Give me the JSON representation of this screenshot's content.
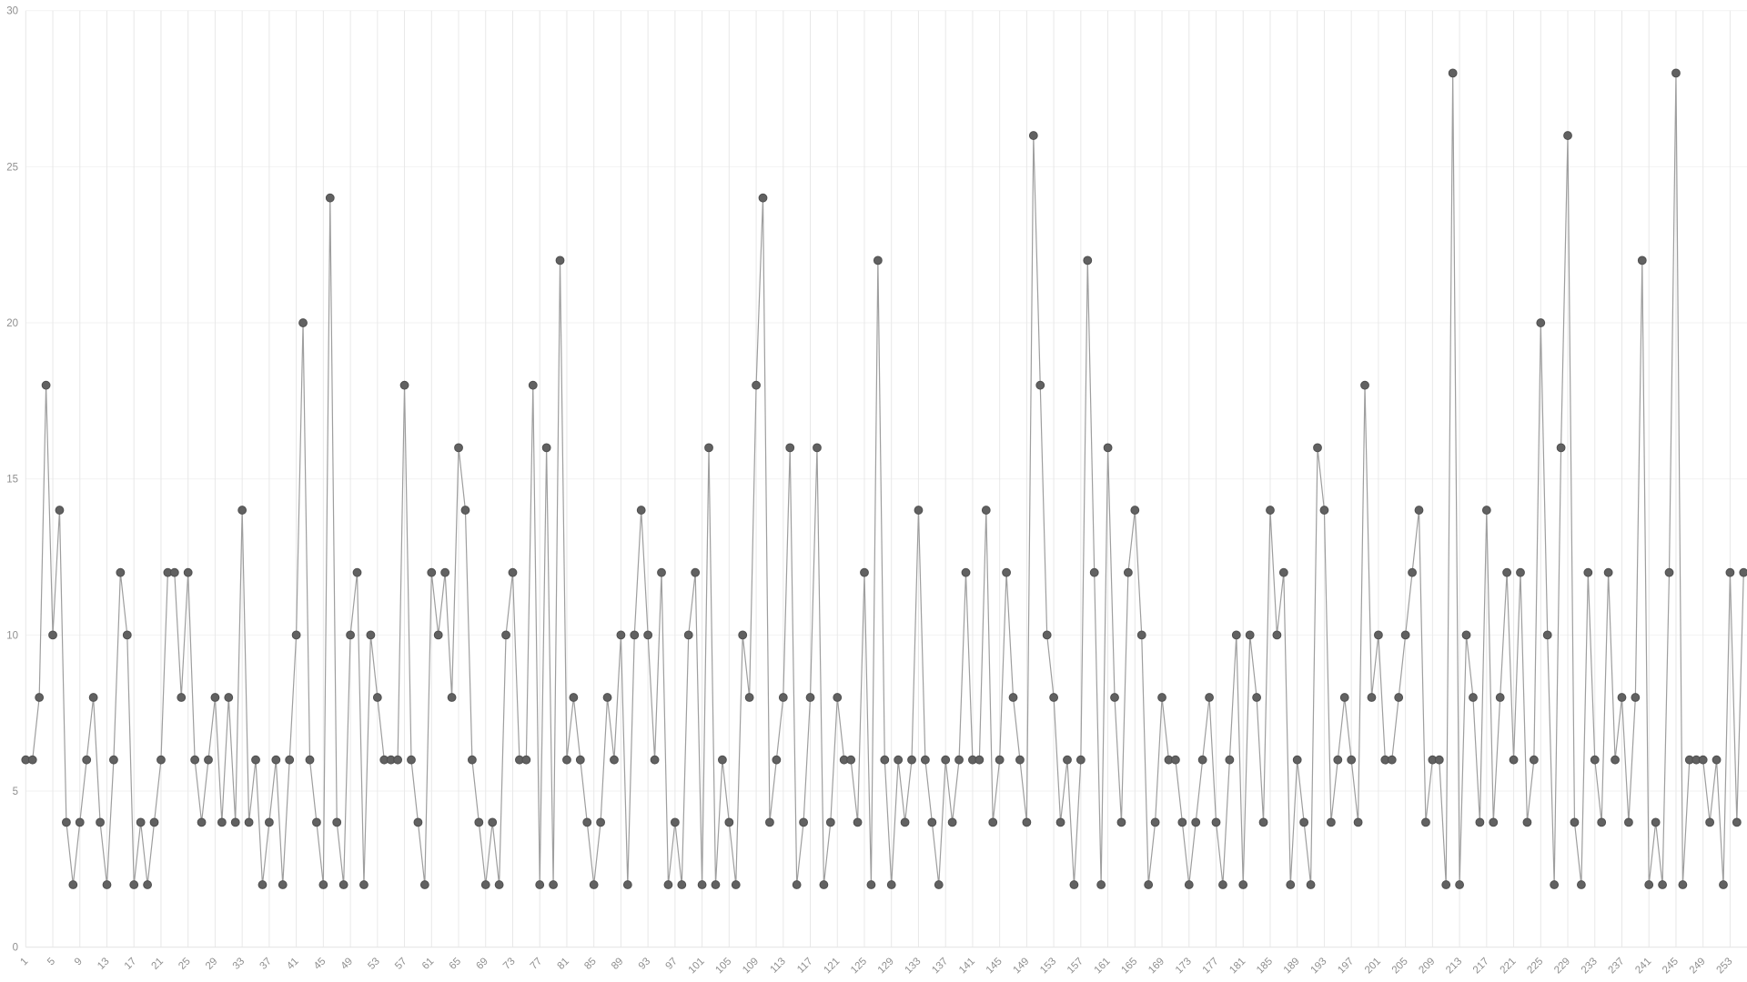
{
  "chart_data": {
    "type": "line",
    "title": "",
    "xlabel": "",
    "ylabel": "",
    "x_start": 1,
    "x_end": 255,
    "x_tick_labels": [
      1,
      5,
      9,
      13,
      17,
      21,
      25,
      29,
      33,
      37,
      41,
      45,
      49,
      53,
      57,
      61,
      65,
      69,
      73,
      77,
      81,
      85,
      89,
      93,
      97,
      101,
      105,
      109,
      113,
      117,
      121,
      125,
      129,
      133,
      137,
      141,
      145,
      149,
      153,
      157,
      161,
      165,
      169,
      173,
      177,
      181,
      185,
      189,
      193,
      197,
      201,
      205,
      209,
      213,
      217,
      221,
      225,
      229,
      233,
      237,
      241,
      245,
      249,
      253
    ],
    "y_ticks": [
      0,
      5,
      10,
      15,
      20,
      25,
      30
    ],
    "ylim": [
      0,
      30
    ],
    "grid": "on",
    "legend": "none",
    "values": [
      6,
      6,
      8,
      18,
      10,
      14,
      4,
      2,
      4,
      6,
      8,
      4,
      2,
      6,
      12,
      10,
      2,
      4,
      2,
      4,
      6,
      12,
      12,
      8,
      12,
      6,
      4,
      6,
      8,
      4,
      8,
      4,
      14,
      4,
      6,
      2,
      4,
      6,
      2,
      6,
      10,
      20,
      6,
      4,
      2,
      24,
      4,
      2,
      10,
      12,
      2,
      10,
      8,
      6,
      6,
      6,
      18,
      6,
      4,
      2,
      12,
      10,
      12,
      8,
      16,
      14,
      6,
      4,
      2,
      4,
      2,
      10,
      12,
      6,
      6,
      18,
      2,
      16,
      2,
      22,
      6,
      8,
      6,
      4,
      2,
      4,
      8,
      6,
      10,
      2,
      10,
      14,
      10,
      6,
      12,
      2,
      4,
      2,
      10,
      12,
      2,
      16,
      2,
      6,
      4,
      2,
      10,
      8,
      18,
      24,
      4,
      6,
      8,
      16,
      2,
      4,
      8,
      16,
      2,
      4,
      8,
      6,
      6,
      4,
      12,
      2,
      22,
      6,
      2,
      6,
      4,
      6,
      14,
      6,
      4,
      2,
      6,
      4,
      6,
      12,
      6,
      6,
      14,
      4,
      6,
      12,
      8,
      6,
      4,
      26,
      18,
      10,
      8,
      4,
      6,
      2,
      6,
      22,
      12,
      2,
      16,
      8,
      4,
      12,
      14,
      10,
      2,
      4,
      8,
      6,
      6,
      4,
      2,
      4,
      6,
      8,
      4,
      2,
      6,
      10,
      2,
      10,
      8,
      4,
      14,
      10,
      12,
      2,
      6,
      4,
      2,
      16,
      14,
      4,
      6,
      8,
      6,
      4,
      18,
      8,
      10,
      6,
      6,
      8,
      10,
      12,
      14,
      4,
      6,
      6,
      2,
      28,
      2,
      10,
      8,
      4,
      14,
      4,
      8,
      12,
      6,
      12,
      4,
      6,
      20,
      10,
      2,
      16,
      26,
      4,
      2,
      12,
      6,
      4,
      12,
      6,
      8,
      4,
      8,
      22,
      2,
      4,
      2,
      12,
      28,
      2,
      6,
      6,
      6,
      4,
      6,
      2,
      12,
      4,
      12
    ]
  },
  "style": {
    "point_color": "#616161",
    "point_stroke": "#4f4f4f",
    "line_color": "#9e9e9e",
    "v_grid_color": "#e8e8e8",
    "h_grid_color": "#f2f2f2",
    "baseline_color": "#e2e2e2",
    "tick_label_color": "#8f8f8f"
  },
  "layout_values": {
    "x_origin": 28.3,
    "x_step": 7.433,
    "y_base": 1041.7,
    "y_unit": 34.333,
    "point_radius": 4.4
  }
}
